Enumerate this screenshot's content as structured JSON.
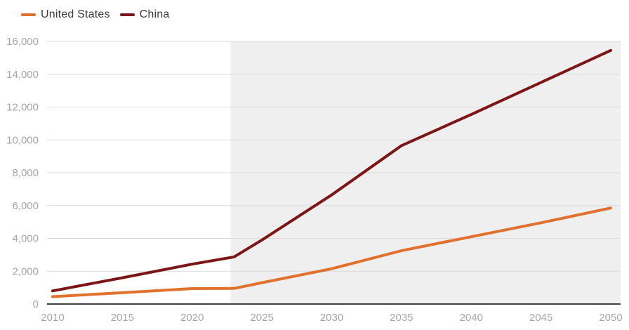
{
  "legend": {
    "items": [
      {
        "label": "United States",
        "color": "#E0722E"
      },
      {
        "label": "China",
        "color": "#7D1415"
      }
    ]
  },
  "chart_data": {
    "type": "line",
    "x": [
      2010,
      2015,
      2020,
      2023,
      2025,
      2030,
      2035,
      2040,
      2045,
      2050
    ],
    "series": [
      {
        "name": "United States",
        "color": "#E0722E",
        "values": [
          450,
          690,
          940,
          950,
          1300,
          2150,
          3250,
          4100,
          4950,
          5850
        ]
      },
      {
        "name": "China",
        "color": "#7D1415",
        "values": [
          800,
          1600,
          2430,
          2870,
          3900,
          6650,
          9650,
          11550,
          13500,
          15450
        ]
      }
    ],
    "xlim": [
      2010,
      2050
    ],
    "ylim": [
      0,
      16000
    ],
    "xticks": [
      2010,
      2015,
      2020,
      2025,
      2030,
      2035,
      2040,
      2045,
      2050
    ],
    "xtick_labels": [
      "2010",
      "2015",
      "2020",
      "2025",
      "2030",
      "2035",
      "2040",
      "2045",
      "2050"
    ],
    "yticks": [
      0,
      2000,
      4000,
      6000,
      8000,
      10000,
      12000,
      14000,
      16000
    ],
    "ytick_labels": [
      "0",
      "2,000",
      "4,000",
      "6,000",
      "8,000",
      "10,000",
      "12,000",
      "14,000",
      "16,000"
    ],
    "grid": true,
    "legend_position": "top-left",
    "projection_region": {
      "start_year": 2022.75,
      "color": "#EFEFEF"
    }
  },
  "styles": {
    "background": "#FFFFFF",
    "gridline_color": "#DBDBDB",
    "axis_line_color": "#414141",
    "tick_label_color": "#A6A6A6",
    "legend_text_color": "#3C3C3C",
    "line_width": 4
  }
}
